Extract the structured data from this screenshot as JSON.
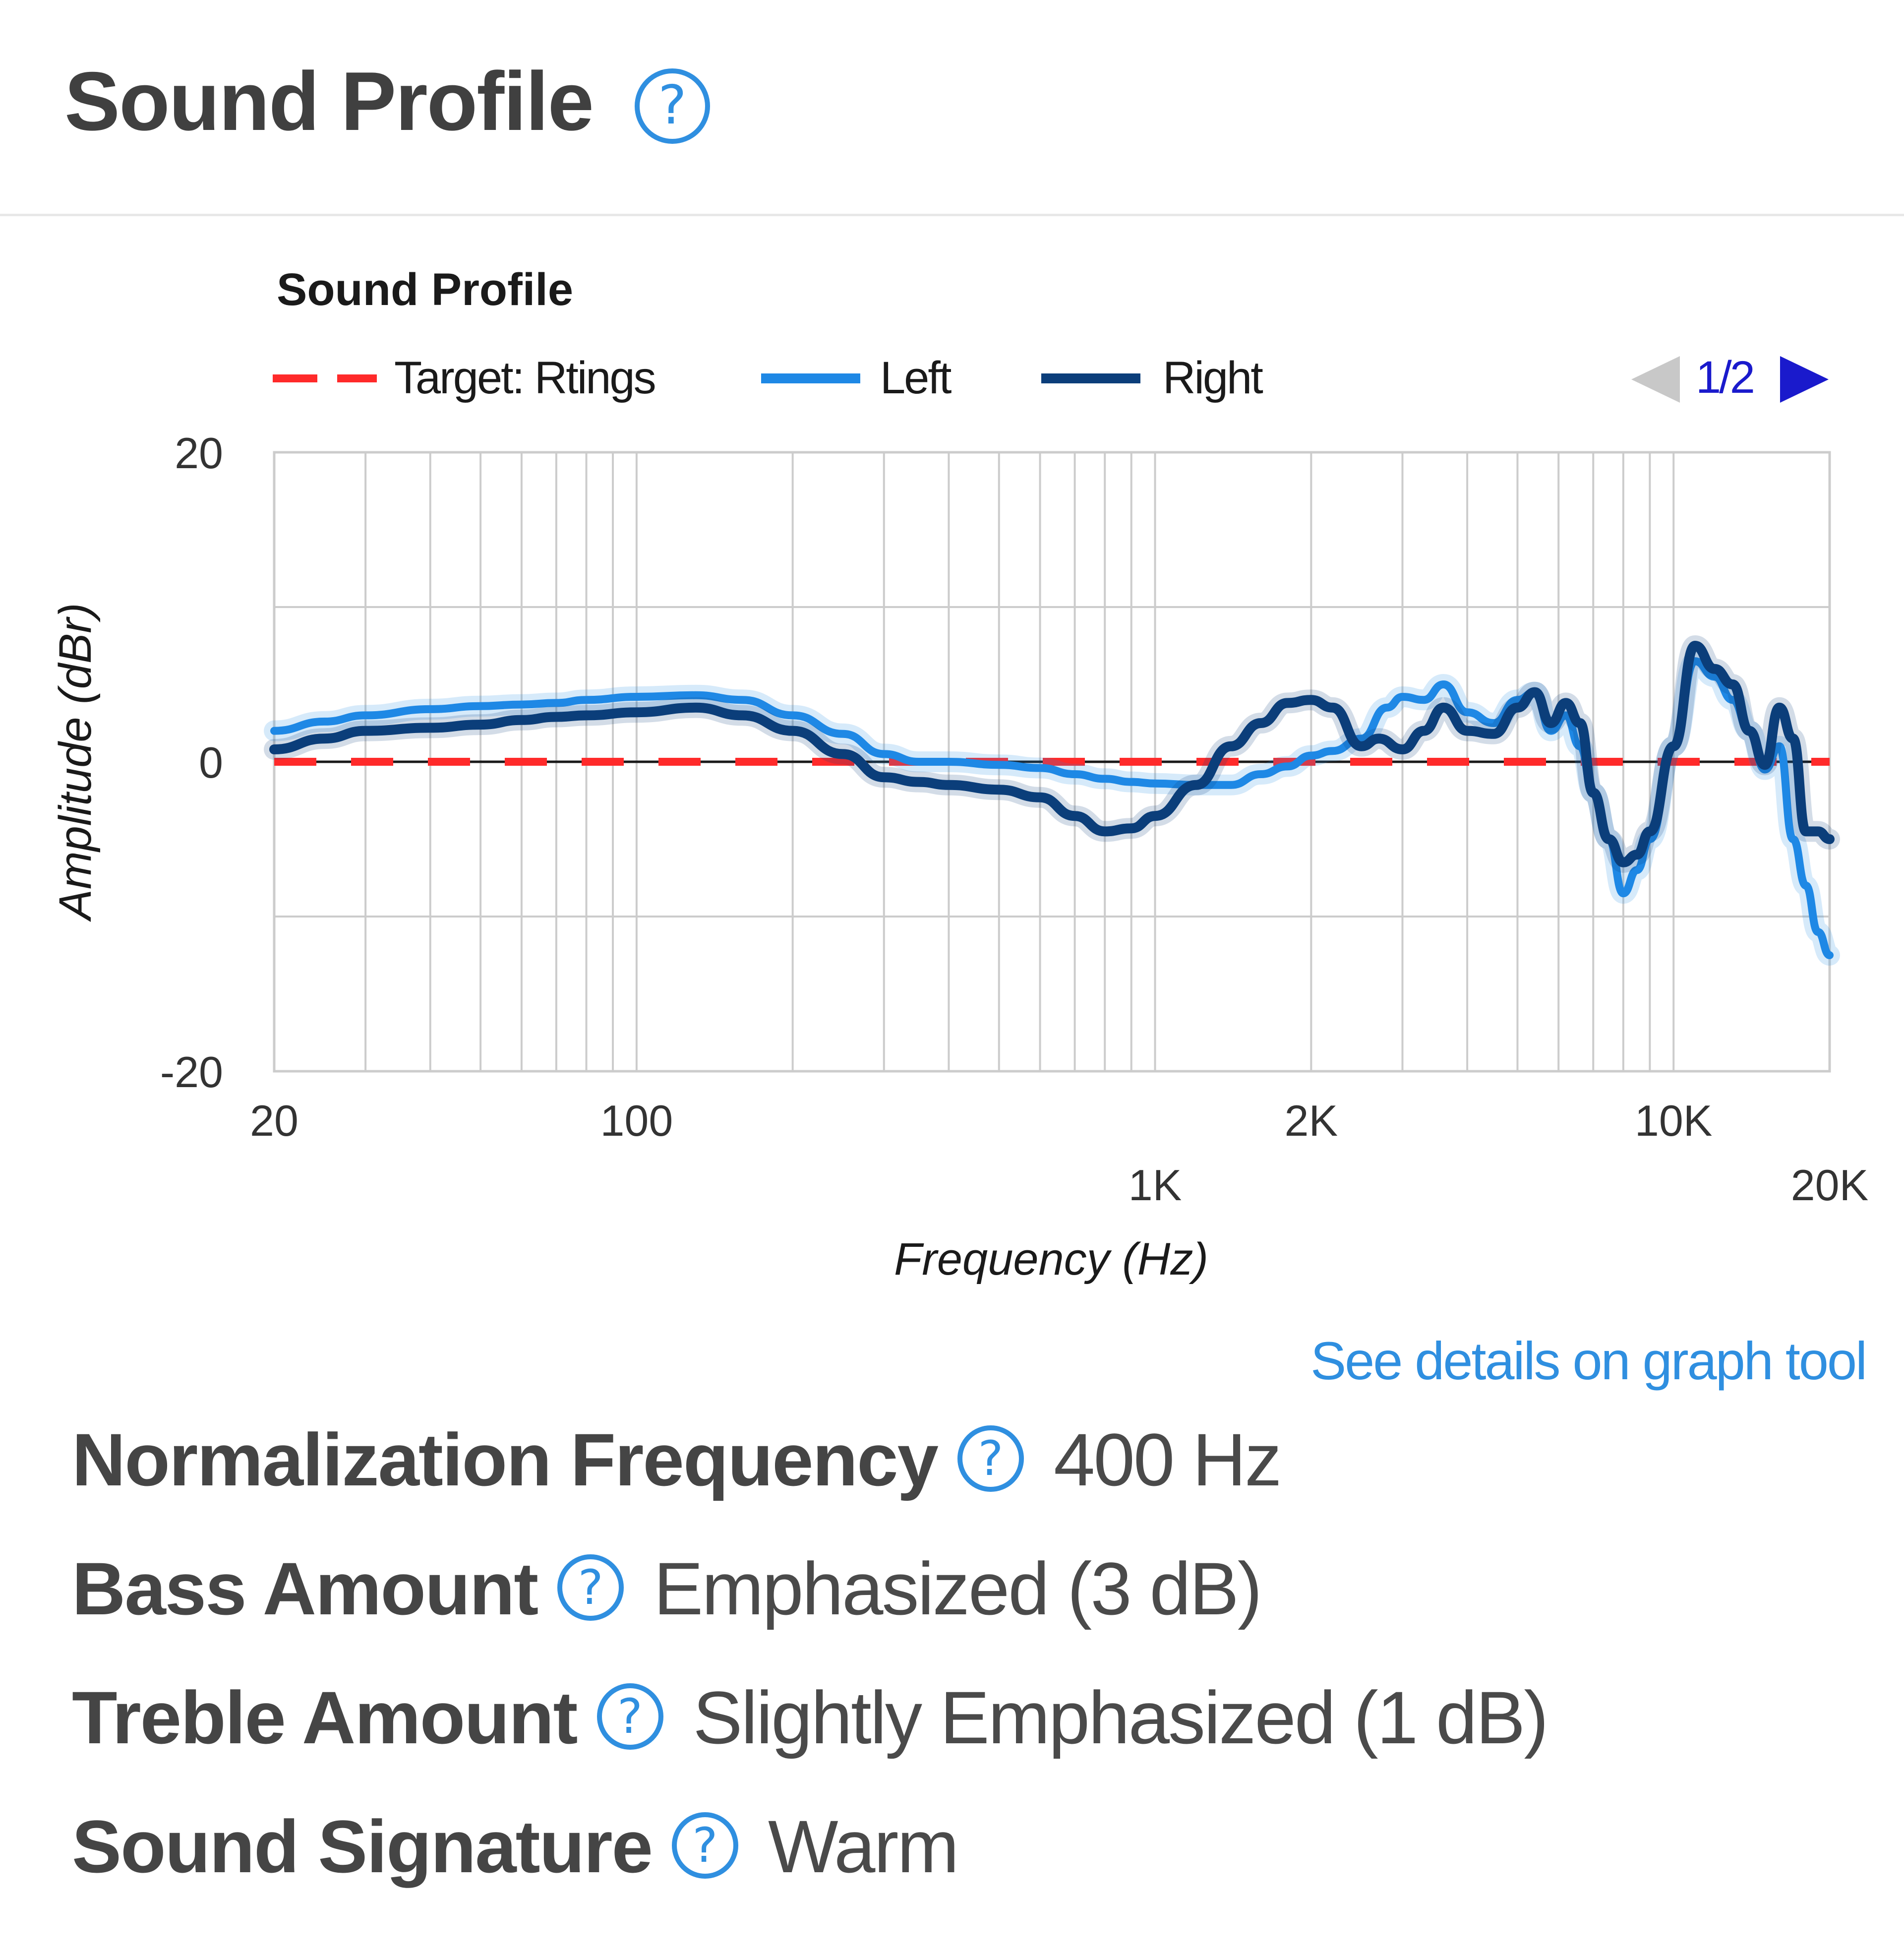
{
  "header": {
    "title": "Sound Profile"
  },
  "chart_data": {
    "type": "line",
    "title": "Sound Profile",
    "xlabel": "Frequency (Hz)",
    "ylabel": "Amplitude (dBr)",
    "x_scale": "log",
    "xlim": [
      20,
      20000
    ],
    "ylim": [
      -20,
      20
    ],
    "x_ticks_top_row": [
      "20",
      "100",
      "2K",
      "10K"
    ],
    "x_ticks_bottom_row": [
      "1K",
      "20K"
    ],
    "y_ticks": [
      "20",
      "0",
      "-20"
    ],
    "grid": true,
    "legend_position": "top",
    "page_indicator": "1/2",
    "series": [
      {
        "name": "Target: Rtings",
        "color": "#ff2a2a",
        "style": "dashed",
        "points": [
          [
            20,
            0
          ],
          [
            20000,
            0
          ]
        ]
      },
      {
        "name": "Left",
        "color": "#1e88e5",
        "style": "solid",
        "points": [
          [
            20,
            2.0
          ],
          [
            25,
            2.6
          ],
          [
            30,
            3.0
          ],
          [
            40,
            3.4
          ],
          [
            50,
            3.6
          ],
          [
            60,
            3.7
          ],
          [
            70,
            3.8
          ],
          [
            80,
            4.0
          ],
          [
            100,
            4.2
          ],
          [
            130,
            4.3
          ],
          [
            160,
            4.0
          ],
          [
            200,
            3.0
          ],
          [
            250,
            1.8
          ],
          [
            300,
            0.5
          ],
          [
            350,
            0.0
          ],
          [
            400,
            0.0
          ],
          [
            500,
            -0.2
          ],
          [
            600,
            -0.4
          ],
          [
            700,
            -0.8
          ],
          [
            800,
            -1.1
          ],
          [
            900,
            -1.3
          ],
          [
            1000,
            -1.4
          ],
          [
            1200,
            -1.5
          ],
          [
            1400,
            -1.5
          ],
          [
            1600,
            -0.8
          ],
          [
            1800,
            -0.3
          ],
          [
            2000,
            0.4
          ],
          [
            2200,
            0.7
          ],
          [
            2500,
            1.5
          ],
          [
            2800,
            3.5
          ],
          [
            3000,
            4.2
          ],
          [
            3300,
            4.0
          ],
          [
            3600,
            5.0
          ],
          [
            4000,
            3.2
          ],
          [
            4500,
            2.5
          ],
          [
            5000,
            4.0
          ],
          [
            5400,
            4.5
          ],
          [
            5800,
            2.0
          ],
          [
            6200,
            3.0
          ],
          [
            6600,
            1.0
          ],
          [
            7000,
            -2.0
          ],
          [
            7500,
            -5.0
          ],
          [
            8000,
            -8.5
          ],
          [
            8500,
            -7.0
          ],
          [
            9000,
            -5.0
          ],
          [
            10000,
            1.0
          ],
          [
            11000,
            6.5
          ],
          [
            12000,
            5.5
          ],
          [
            13000,
            4.0
          ],
          [
            14000,
            2.0
          ],
          [
            15000,
            -0.5
          ],
          [
            16000,
            1.0
          ],
          [
            17000,
            -5.0
          ],
          [
            18000,
            -8.0
          ],
          [
            19000,
            -11.0
          ],
          [
            20000,
            -12.5
          ]
        ]
      },
      {
        "name": "Right",
        "color": "#0b3e7a",
        "style": "solid",
        "points": [
          [
            20,
            0.8
          ],
          [
            25,
            1.5
          ],
          [
            30,
            2.0
          ],
          [
            40,
            2.2
          ],
          [
            50,
            2.4
          ],
          [
            60,
            2.7
          ],
          [
            70,
            2.9
          ],
          [
            80,
            3.0
          ],
          [
            100,
            3.2
          ],
          [
            130,
            3.5
          ],
          [
            160,
            3.0
          ],
          [
            200,
            2.0
          ],
          [
            250,
            0.5
          ],
          [
            300,
            -1.0
          ],
          [
            350,
            -1.3
          ],
          [
            400,
            -1.5
          ],
          [
            500,
            -1.8
          ],
          [
            600,
            -2.3
          ],
          [
            700,
            -3.5
          ],
          [
            800,
            -4.5
          ],
          [
            900,
            -4.3
          ],
          [
            1000,
            -3.5
          ],
          [
            1200,
            -1.5
          ],
          [
            1400,
            1.0
          ],
          [
            1600,
            2.5
          ],
          [
            1800,
            3.8
          ],
          [
            2000,
            4.0
          ],
          [
            2200,
            3.5
          ],
          [
            2500,
            1.0
          ],
          [
            2700,
            1.5
          ],
          [
            3000,
            0.8
          ],
          [
            3300,
            2.0
          ],
          [
            3600,
            3.5
          ],
          [
            4000,
            2.0
          ],
          [
            4500,
            1.8
          ],
          [
            5000,
            3.5
          ],
          [
            5400,
            4.5
          ],
          [
            5800,
            2.5
          ],
          [
            6200,
            3.8
          ],
          [
            6600,
            2.5
          ],
          [
            7000,
            -2.0
          ],
          [
            7500,
            -5.0
          ],
          [
            8000,
            -6.5
          ],
          [
            8500,
            -6.0
          ],
          [
            9000,
            -4.5
          ],
          [
            10000,
            1.0
          ],
          [
            11000,
            7.5
          ],
          [
            12000,
            6.0
          ],
          [
            13000,
            5.0
          ],
          [
            14000,
            2.0
          ],
          [
            15000,
            -0.2
          ],
          [
            16000,
            3.5
          ],
          [
            17000,
            1.5
          ],
          [
            18000,
            -4.5
          ],
          [
            19000,
            -4.5
          ],
          [
            20000,
            -5.0
          ]
        ]
      }
    ]
  },
  "graph_tool_link": "See details on graph tool",
  "properties": [
    {
      "label": "Normalization Frequency",
      "value": "400 Hz"
    },
    {
      "label": "Bass Amount",
      "value": "Emphasized (3 dB)"
    },
    {
      "label": "Treble Amount",
      "value": "Slightly Emphasized (1 dB)"
    },
    {
      "label": "Sound Signature",
      "value": "Warm"
    }
  ],
  "icons": {
    "help": "question-mark-circle-icon",
    "pager_prev": "triangle-left-icon",
    "pager_next": "triangle-right-icon"
  },
  "colors": {
    "help_icon": "#2f8fe0",
    "link": "#2f8fe0",
    "pager_active": "#1a1acc",
    "pager_disabled": "#c8c8c8"
  }
}
